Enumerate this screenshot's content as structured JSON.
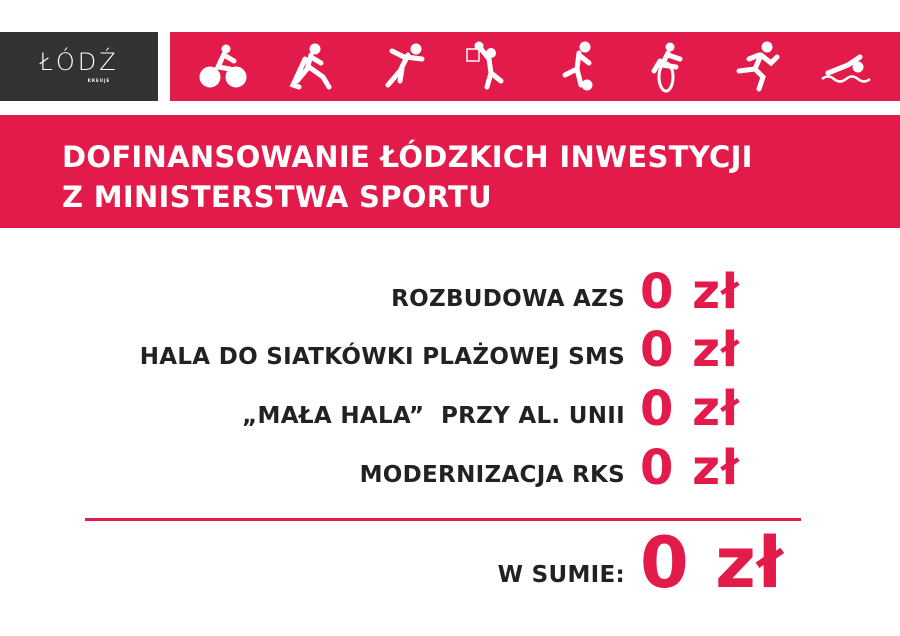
{
  "logo": {
    "text": "ŁÓDŹ",
    "subtext": "KREUJE"
  },
  "colors": {
    "accent": "#e31b4b",
    "logo_bg": "#333333",
    "text": "#222222"
  },
  "icons": [
    "cycling-icon",
    "hockey-icon",
    "handball-icon",
    "basketball-icon",
    "football-icon",
    "bmx-icon",
    "running-icon",
    "swimming-icon"
  ],
  "title": {
    "line1": "DOFINANSOWANIE ŁÓDZKICH INWESTYCJI",
    "line2": "Z MINISTERSTWA SPORTU"
  },
  "items": [
    {
      "label": "ROZBUDOWA AZS",
      "value": "0 zł"
    },
    {
      "label": "HALA DO SIATKÓWKI PLAŻOWEJ SMS",
      "value": "0 zł"
    },
    {
      "label": "„MAŁA HALA”  PRZY AL. UNII",
      "value": "0 zł"
    },
    {
      "label": "MODERNIZACJA RKS",
      "value": "0 zł"
    }
  ],
  "total": {
    "label": "W SUMIE:",
    "value": "0 zł"
  }
}
